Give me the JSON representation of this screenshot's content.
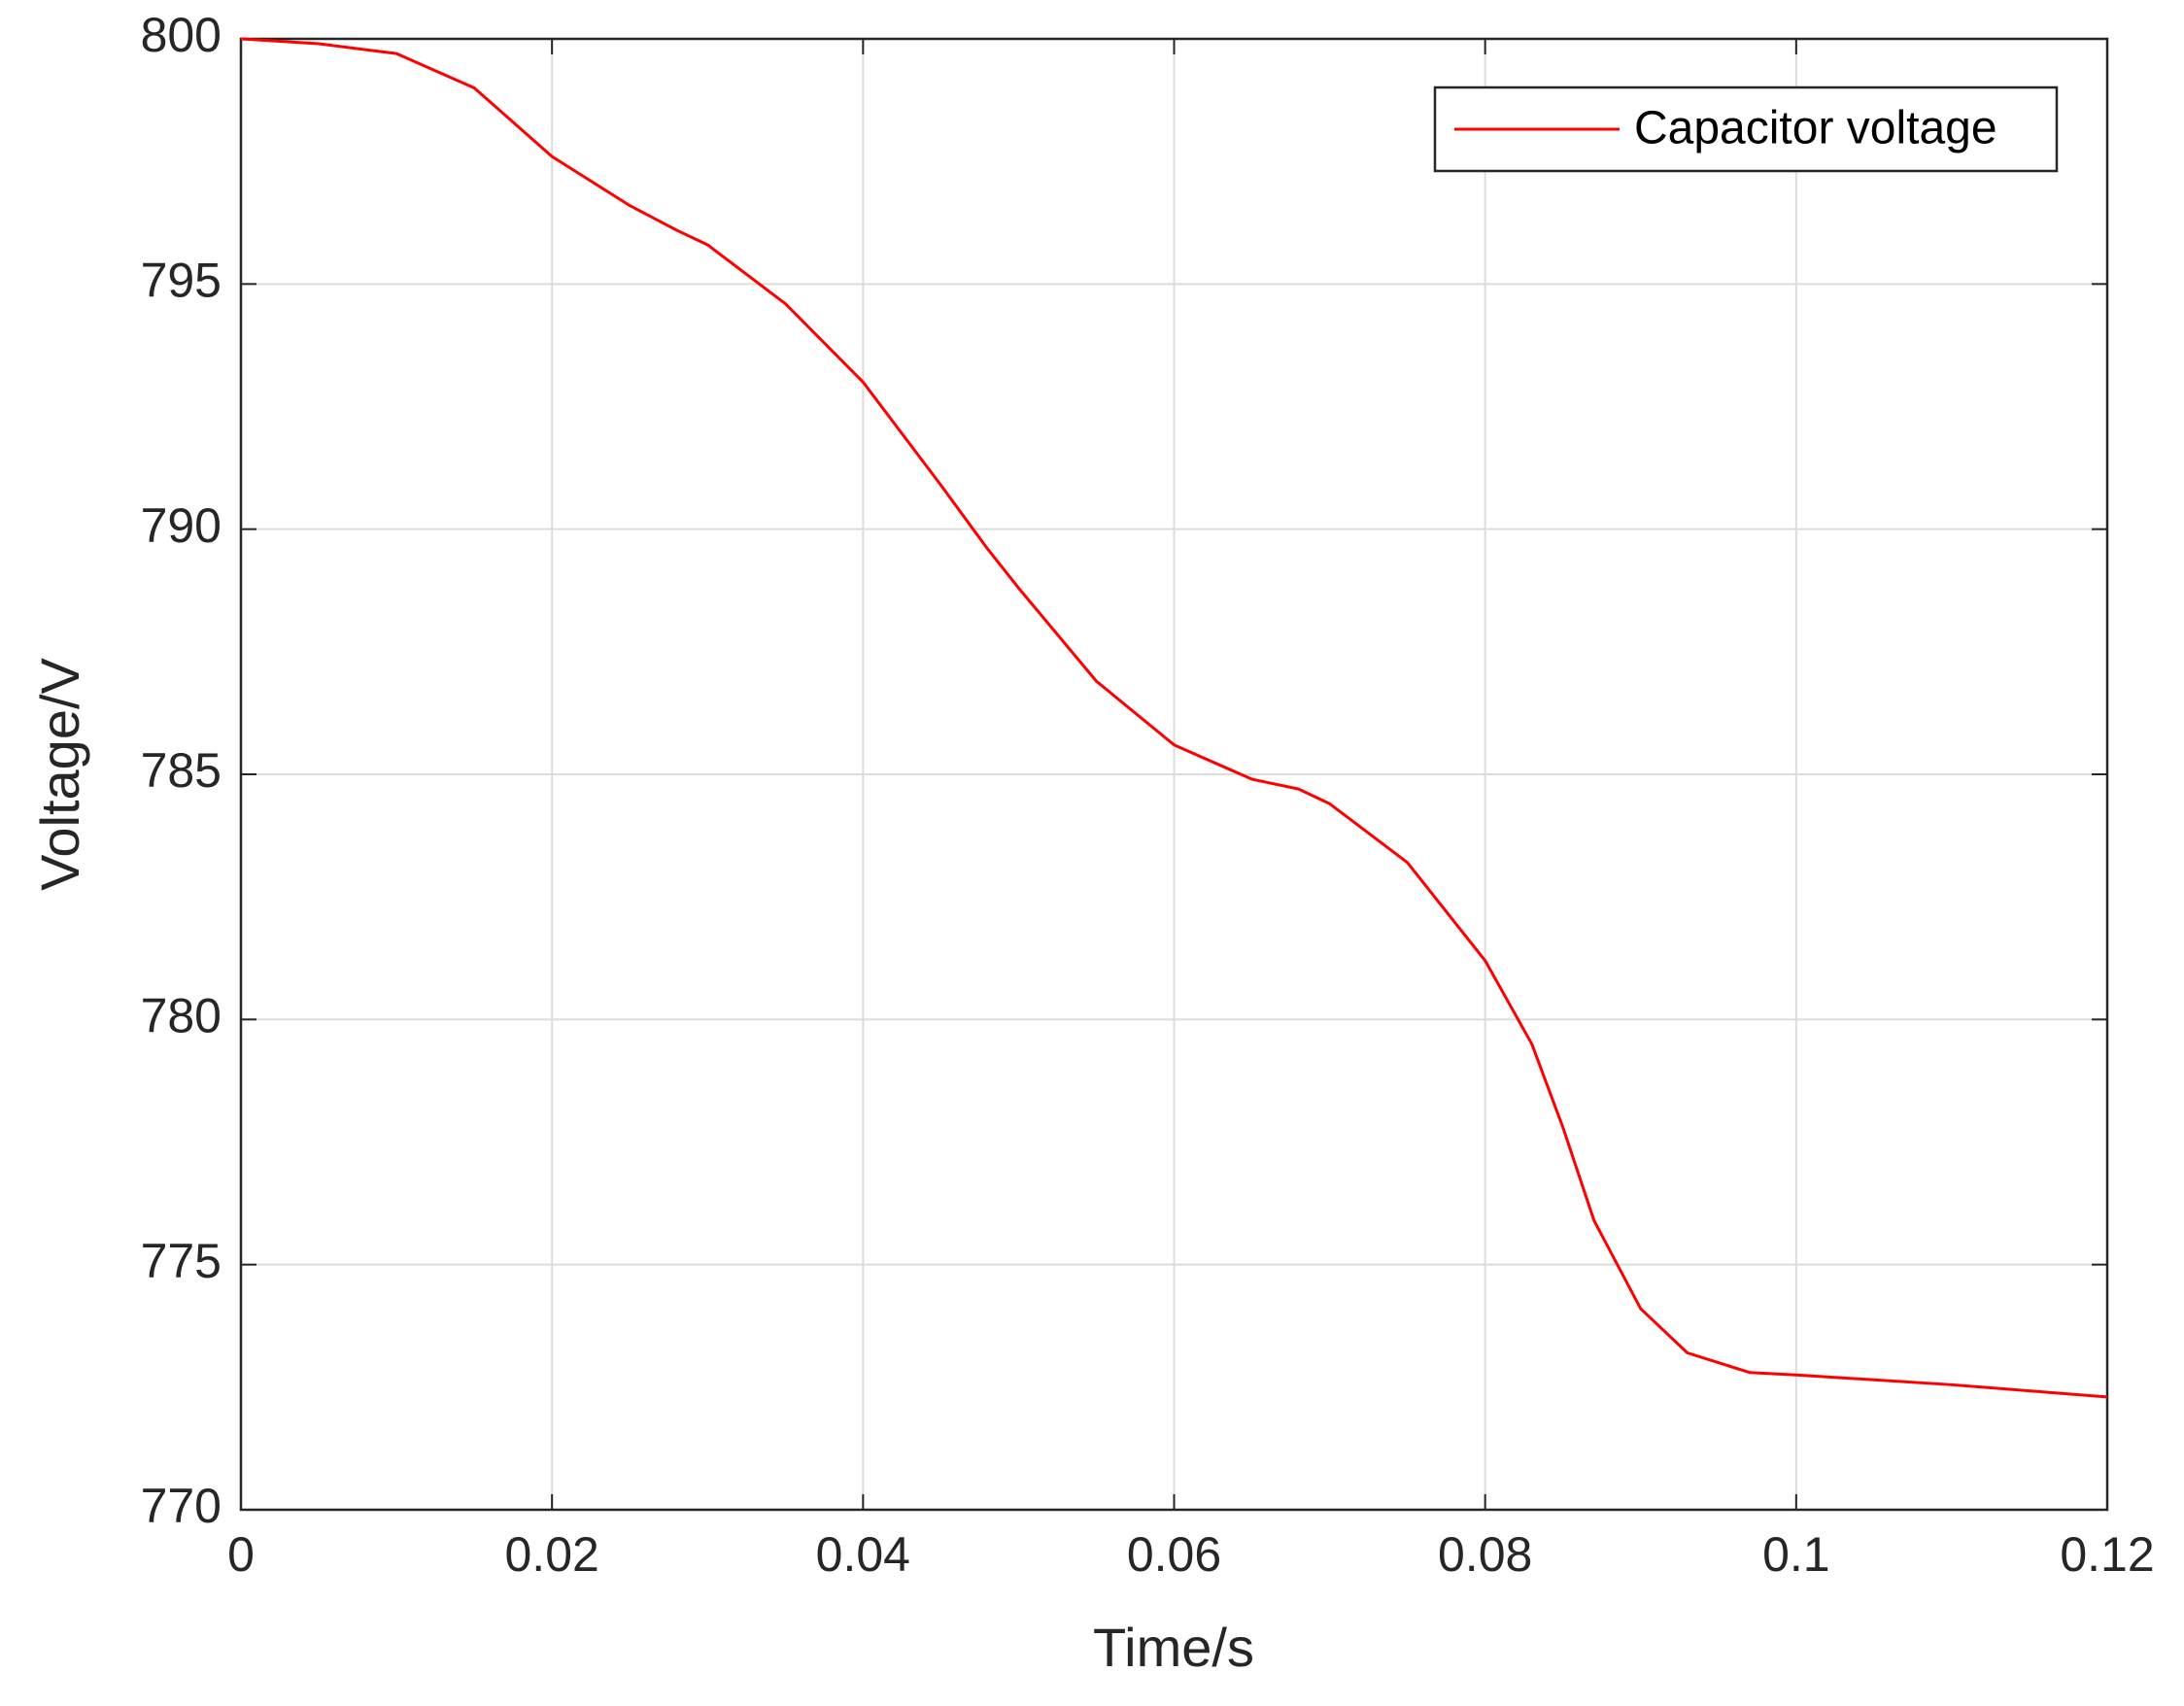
{
  "chart_data": {
    "type": "line",
    "xlabel": "Time/s",
    "ylabel": "Voltage/V",
    "x": [
      0,
      0.005,
      0.01,
      0.015,
      0.02,
      0.025,
      0.028,
      0.03,
      0.035,
      0.04,
      0.045,
      0.048,
      0.05,
      0.055,
      0.06,
      0.065,
      0.068,
      0.07,
      0.075,
      0.08,
      0.083,
      0.085,
      0.087,
      0.09,
      0.093,
      0.097,
      0.1,
      0.11,
      0.12
    ],
    "series": [
      {
        "name": "Capacitor voltage",
        "color": "#ff0000",
        "values": [
          800,
          799.9,
          799.7,
          799.0,
          797.6,
          796.6,
          796.1,
          795.8,
          794.6,
          793.0,
          790.9,
          789.6,
          788.8,
          786.9,
          785.6,
          784.9,
          784.7,
          784.4,
          783.2,
          781.2,
          779.5,
          777.8,
          775.9,
          774.1,
          773.2,
          772.8,
          772.75,
          772.55,
          772.3
        ]
      }
    ],
    "xlim": [
      0,
      0.12
    ],
    "xticks": [
      0,
      0.02,
      0.04,
      0.06,
      0.08,
      0.1,
      0.12
    ],
    "ylim": [
      770,
      800
    ],
    "yticks": [
      770,
      775,
      780,
      785,
      790,
      795,
      800
    ],
    "grid": true,
    "legend": "upper right"
  }
}
